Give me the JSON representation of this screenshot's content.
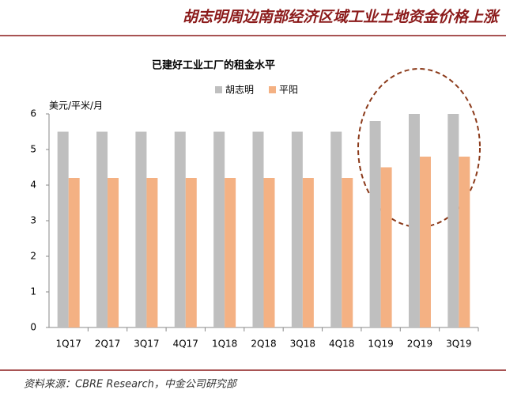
{
  "header": {
    "title": "胡志明周边南部经济区域工业土地资金价格上涨"
  },
  "source": "资料来源：CBRE Research，中金公司研究部",
  "chart_data": {
    "type": "bar",
    "title": "已建好工业工厂的租金水平",
    "y_label": "美元/平米/月",
    "categories": [
      "1Q17",
      "2Q17",
      "3Q17",
      "4Q17",
      "1Q18",
      "2Q18",
      "3Q18",
      "4Q18",
      "1Q19",
      "2Q19",
      "3Q19"
    ],
    "series": [
      {
        "name": "胡志明",
        "color": "#bfbfbf",
        "values": [
          5.5,
          5.5,
          5.5,
          5.5,
          5.5,
          5.5,
          5.5,
          5.5,
          5.8,
          6,
          6
        ]
      },
      {
        "name": "平阳",
        "color": "#f4b183",
        "values": [
          4.2,
          4.2,
          4.2,
          4.2,
          4.2,
          4.2,
          4.2,
          4.2,
          4.5,
          4.8,
          4.8
        ]
      }
    ],
    "ylim": [
      0,
      6
    ],
    "yticks": [
      0,
      1,
      2,
      3,
      4,
      5,
      6
    ],
    "grid": false,
    "legend": "top"
  }
}
